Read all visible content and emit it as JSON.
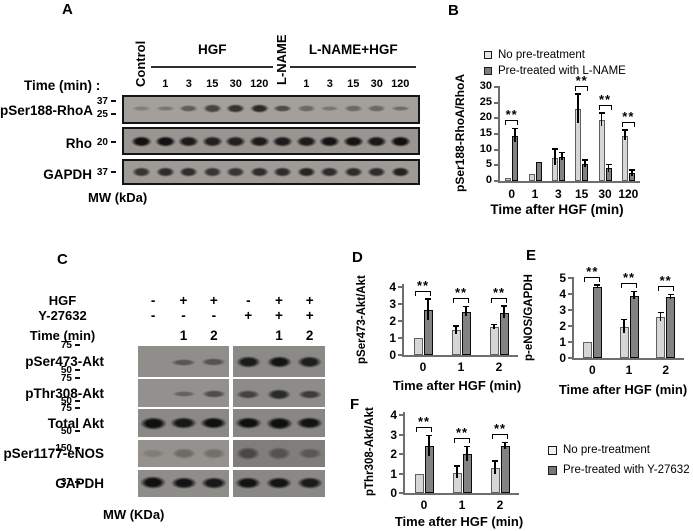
{
  "panel_labels": {
    "A": "A",
    "B": "B",
    "C": "C",
    "D": "D",
    "E": "E",
    "F": "F"
  },
  "colors": {
    "light_bar": "#d6d6d6",
    "dark_bar": "#828282",
    "light_bar_border": "#606060",
    "dark_bar_border": "#0a0a0a",
    "axis": "#6e6e6e",
    "error": "#000000"
  },
  "panelA": {
    "time_row_label": "Time (min) :",
    "mw_unit": "MW (kDa)",
    "groups": {
      "control": "Control",
      "hgf": "HGF",
      "lname": "L-NAME",
      "lname_hgf": "L-NAME+HGF"
    },
    "hgf_times": [
      "1",
      "3",
      "15",
      "30",
      "120"
    ],
    "lname_hgf_times": [
      "1",
      "3",
      "15",
      "30",
      "120"
    ],
    "blots": [
      {
        "name": "pSer188-RhoA",
        "mw": [
          "37",
          "25"
        ],
        "bands": [
          0.3,
          0.5,
          1.1,
          1.7,
          2.1,
          2.3,
          1.5,
          0.8,
          0.5,
          0.8,
          0.8,
          0.7
        ]
      },
      {
        "name": "Rho",
        "mw": [
          "20"
        ],
        "bands": [
          3,
          2.9,
          2.6,
          2.5,
          2.5,
          2.6,
          2.6,
          2.6,
          2.8,
          2.8,
          2.7,
          3
        ]
      },
      {
        "name": "GAPDH",
        "mw": [
          "37"
        ],
        "bands": [
          2,
          2.2,
          2.2,
          2,
          2,
          2.2,
          2.2,
          2.4,
          2.2,
          2.2,
          2.2,
          2.5
        ]
      }
    ]
  },
  "panelC": {
    "mw_unit": "MW (KDa)",
    "condition_rows": [
      {
        "label": "HGF",
        "values": [
          "-",
          "+",
          "+",
          "-",
          "+",
          "+"
        ]
      },
      {
        "label": "Y-27632",
        "values": [
          "-",
          "-",
          "-",
          "+",
          "+",
          "+"
        ]
      },
      {
        "label": "Time (min)",
        "values": [
          "",
          "1",
          "2",
          "",
          "1",
          "2"
        ]
      }
    ],
    "blots": [
      {
        "name": "pSer473-Akt",
        "mw": [
          "75",
          "50"
        ],
        "bands": [
          0,
          1.0,
          1.1,
          2.6,
          2.8,
          2.5
        ]
      },
      {
        "name": "pThr308-Akt",
        "mw": [
          "75",
          "50"
        ],
        "bands": [
          0,
          0.7,
          1.3,
          1.5,
          2.2,
          1.7
        ]
      },
      {
        "name": "Total Akt",
        "mw": [
          "75",
          "50"
        ],
        "bands": [
          3,
          2.7,
          2.9,
          2.9,
          3,
          2.8
        ]
      },
      {
        "name": "pSer1177-eNOS",
        "mw": [
          "150"
        ],
        "bands": [
          0.15,
          0.7,
          0.55,
          1.5,
          1.1,
          0.9
        ]
      },
      {
        "name": "GAPDH",
        "mw": [
          "37"
        ],
        "bands": [
          3,
          2.8,
          2.7,
          2.8,
          2.8,
          2.6
        ]
      }
    ]
  },
  "chart_data": {
    "B": {
      "type": "bar",
      "ylabel": "pSer188-RhoA/RhoA",
      "xlabel": "Time after HGF (min)",
      "ylim": [
        0,
        30
      ],
      "yticks": [
        0,
        5,
        10,
        15,
        20,
        25,
        30
      ],
      "categories": [
        "0",
        "1",
        "3",
        "15",
        "30",
        "120"
      ],
      "series": [
        {
          "name": "No pre-treatment",
          "values": [
            1,
            2.2,
            7.5,
            23,
            19.5,
            14.5
          ],
          "errors": [
            0,
            0,
            2.5,
            4.5,
            2,
            1.5
          ]
        },
        {
          "name": "Pre-treated with L-NAME",
          "values": [
            14.5,
            6,
            7.8,
            5.5,
            4,
            2.5
          ],
          "errors": [
            2,
            0,
            1,
            1,
            1,
            0.8
          ]
        }
      ],
      "sig": [
        "**",
        "",
        "",
        "**",
        "**",
        "**"
      ],
      "legend": [
        "No pre-treatment",
        "Pre-treated with L-NAME"
      ],
      "legend_position": "top"
    },
    "D": {
      "type": "bar",
      "ylabel": "pSer473-Akt/Akt",
      "xlabel": "Time after HGF (min)",
      "ylim": [
        0,
        4
      ],
      "yticks": [
        0,
        1,
        2,
        3,
        4
      ],
      "categories": [
        "0",
        "1",
        "2"
      ],
      "series": [
        {
          "name": "No pre-treatment",
          "values": [
            1,
            1.45,
            1.65
          ],
          "errors": [
            0,
            0.2,
            0.1
          ]
        },
        {
          "name": "Pre-treated with Y-27632",
          "values": [
            2.65,
            2.55,
            2.5
          ],
          "errors": [
            0.6,
            0.25,
            0.35
          ]
        }
      ],
      "sig": [
        "**",
        "**",
        "**"
      ]
    },
    "E": {
      "type": "bar",
      "ylabel": "p-eNOS/GAPDH",
      "xlabel": "Time after HGF (min)",
      "ylim": [
        0,
        5
      ],
      "yticks": [
        0,
        1,
        2,
        3,
        4,
        5
      ],
      "categories": [
        "0",
        "1",
        "2"
      ],
      "series": [
        {
          "name": "No pre-treatment",
          "values": [
            1,
            1.95,
            2.55
          ],
          "errors": [
            0,
            0.4,
            0.25
          ]
        },
        {
          "name": "Pre-treated with Y-27632",
          "values": [
            4.45,
            3.9,
            3.8
          ],
          "errors": [
            0.08,
            0.2,
            0.12
          ]
        }
      ],
      "sig": [
        "**",
        "**",
        "**"
      ]
    },
    "F": {
      "type": "bar",
      "ylabel": "pThr308-Akt/Akt",
      "xlabel": "Time after HGF (min)",
      "ylim": [
        0,
        4
      ],
      "yticks": [
        0,
        1,
        2,
        3,
        4
      ],
      "categories": [
        "0",
        "1",
        "2"
      ],
      "series": [
        {
          "name": "No pre-treatment",
          "values": [
            1,
            1.05,
            1.3
          ],
          "errors": [
            0,
            0.3,
            0.3
          ]
        },
        {
          "name": "Pre-treated with Y-27632",
          "values": [
            2.4,
            2.0,
            2.4
          ],
          "errors": [
            0.5,
            0.35,
            0.15
          ]
        }
      ],
      "sig": [
        "**",
        "**",
        "**"
      ]
    }
  },
  "legend_def": {
    "items": [
      "No pre-treatment",
      "Pre-treated with Y-27632"
    ]
  }
}
